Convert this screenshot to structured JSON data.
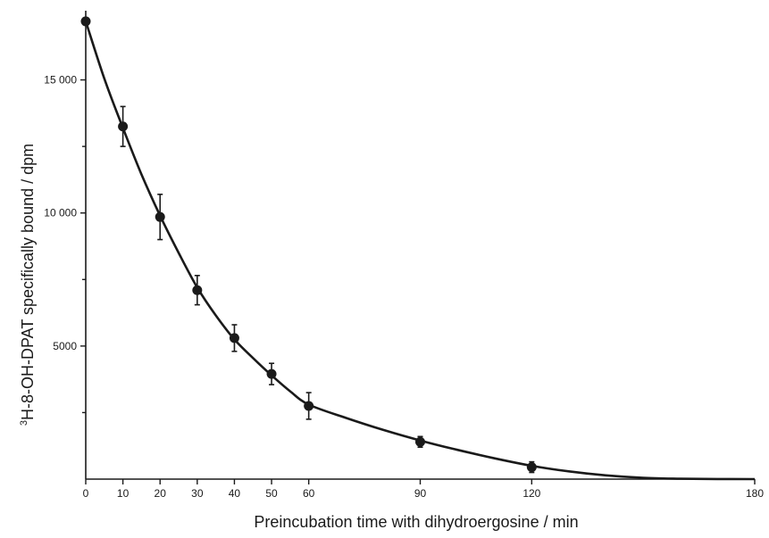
{
  "chart_data": {
    "type": "scatter",
    "xlabel": "Preincubation time with dihydroergosine / min",
    "ylabel_sup": "3",
    "ylabel": "H-8-OH-DPAT specifically bound / dpm",
    "xlim": [
      0,
      180
    ],
    "ylim": [
      0,
      17600
    ],
    "x_ticks": [
      0,
      10,
      20,
      30,
      40,
      50,
      60,
      90,
      120,
      180
    ],
    "x_tick_labels": [
      "0",
      "10",
      "20",
      "30",
      "40",
      "50",
      "60",
      "90",
      "120",
      "180"
    ],
    "y_ticks": [
      5000,
      10000,
      15000
    ],
    "y_tick_labels": [
      "5000",
      "10 000",
      "15 000"
    ],
    "y_minor_ticks": [
      2500,
      7500,
      12500
    ],
    "grid": false,
    "series": [
      {
        "x": [
          0,
          10,
          20,
          30,
          40,
          50,
          60,
          90,
          120
        ],
        "y": [
          17200,
          13250,
          9850,
          7100,
          5300,
          3950,
          2750,
          1400,
          450
        ],
        "err": [
          0,
          750,
          850,
          550,
          500,
          400,
          500,
          200,
          200
        ]
      }
    ],
    "fit_curve": {
      "x": [
        0,
        5,
        10,
        15,
        20,
        25,
        30,
        35,
        40,
        45,
        50,
        55,
        60,
        70,
        80,
        90,
        100,
        110,
        120,
        130,
        140,
        150,
        160,
        170,
        180
      ],
      "y": [
        17200,
        15050,
        13200,
        11450,
        9900,
        8500,
        7200,
        6150,
        5250,
        4550,
        3900,
        3300,
        2800,
        2300,
        1850,
        1450,
        1100,
        780,
        500,
        290,
        140,
        50,
        15,
        3,
        0
      ]
    }
  }
}
